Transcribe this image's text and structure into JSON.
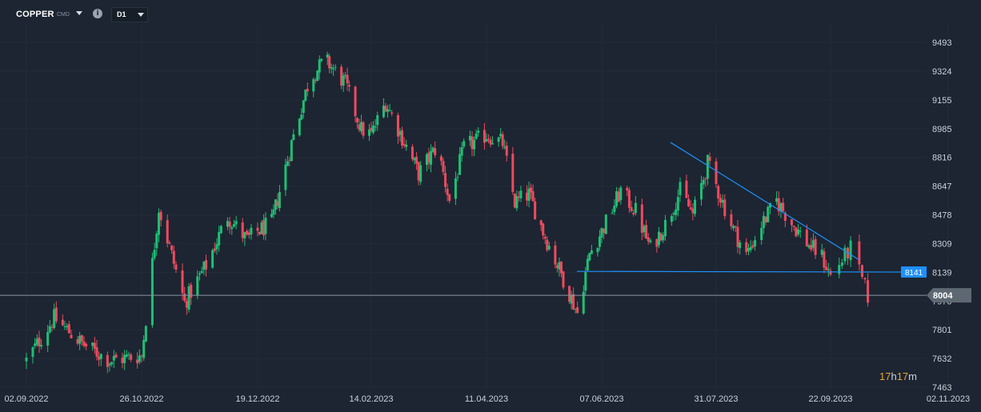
{
  "header": {
    "symbol": "COPPER",
    "symbol_type": "CMD",
    "timeframe": "D1"
  },
  "countdown": {
    "hours": "17",
    "hours_unit": "h",
    "minutes": "17",
    "minutes_unit": "m"
  },
  "colors": {
    "background": "#1c2531",
    "up": "#1fbf75",
    "down": "#ef4a5f",
    "trendline": "#1e90ff",
    "price_line": "#8a96a3",
    "countdown": "#e8a13a"
  },
  "chart_data": {
    "type": "candlestick",
    "y_ticks": [
      9493,
      9324,
      9155,
      8985,
      8816,
      8647,
      8478,
      8309,
      8139,
      7970,
      7801,
      7632,
      7463
    ],
    "x_ticks": [
      "02.09.2022",
      "26.10.2022",
      "19.12.2022",
      "14.02.2023",
      "11.04.2023",
      "07.06.2023",
      "31.07.2023",
      "22.09.2023",
      "02.11.2023"
    ],
    "ylim": [
      7463,
      9493
    ],
    "current_price": 8004,
    "support_level": 8141,
    "grid": true,
    "description_of_trend": "",
    "price_path": [
      [
        "02.09.2022",
        7620
      ],
      [
        "15.09.2022",
        7870
      ],
      [
        "28.09.2022",
        7720
      ],
      [
        "11.10.2022",
        7620
      ],
      [
        "26.10.2022",
        7650
      ],
      [
        "03.11.2022",
        8520
      ],
      [
        "15.11.2022",
        7960
      ],
      [
        "25.11.2022",
        8180
      ],
      [
        "05.12.2022",
        8470
      ],
      [
        "14.12.2022",
        8330
      ],
      [
        "19.12.2022",
        8380
      ],
      [
        "26.12.2022",
        8430
      ],
      [
        "05.01.2023",
        8900
      ],
      [
        "14.01.2023",
        9280
      ],
      [
        "22.01.2023",
        9390
      ],
      [
        "01.02.2023",
        9250
      ],
      [
        "09.02.2023",
        8980
      ],
      [
        "14.02.2023",
        8950
      ],
      [
        "21.02.2023",
        9140
      ],
      [
        "28.02.2023",
        8960
      ],
      [
        "09.03.2023",
        8720
      ],
      [
        "18.03.2023",
        8880
      ],
      [
        "24.03.2023",
        8560
      ],
      [
        "31.03.2023",
        8870
      ],
      [
        "07.04.2023",
        8920
      ],
      [
        "11.04.2023",
        8950
      ],
      [
        "19.04.2023",
        8900
      ],
      [
        "25.04.2023",
        8550
      ],
      [
        "02.05.2023",
        8600
      ],
      [
        "10.05.2023",
        8350
      ],
      [
        "18.05.2023",
        8130
      ],
      [
        "26.05.2023",
        7900
      ],
      [
        "01.06.2023",
        8250
      ],
      [
        "07.06.2023",
        8380
      ],
      [
        "16.06.2023",
        8620
      ],
      [
        "23.06.2023",
        8500
      ],
      [
        "30.06.2023",
        8280
      ],
      [
        "07.07.2023",
        8420
      ],
      [
        "14.07.2023",
        8620
      ],
      [
        "20.07.2023",
        8480
      ],
      [
        "27.07.2023",
        8780
      ],
      [
        "31.07.2023",
        8650
      ],
      [
        "07.08.2023",
        8420
      ],
      [
        "14.08.2023",
        8240
      ],
      [
        "21.08.2023",
        8420
      ],
      [
        "28.08.2023",
        8560
      ],
      [
        "04.09.2023",
        8430
      ],
      [
        "12.09.2023",
        8300
      ],
      [
        "18.09.2023",
        8230
      ],
      [
        "22.09.2023",
        8120
      ],
      [
        "29.09.2023",
        8280
      ],
      [
        "05.10.2023",
        8000
      ]
    ]
  }
}
